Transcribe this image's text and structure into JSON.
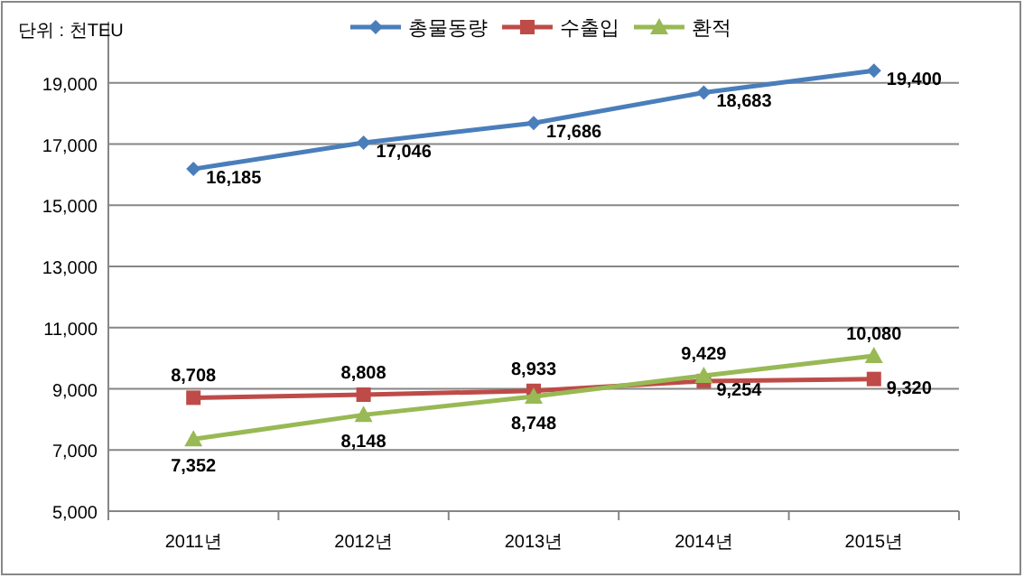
{
  "chart_data": {
    "type": "line",
    "annotations": [
      "단위 : 천TEU"
    ],
    "categories": [
      "2011년",
      "2012년",
      "2013년",
      "2014년",
      "2015년"
    ],
    "series": [
      {
        "name": "총물동량",
        "color": "#4a7ebb",
        "marker": "diamond",
        "values": [
          16185,
          17046,
          17686,
          18683,
          19400
        ],
        "value_labels": [
          "16,185",
          "17,046",
          "17,686",
          "18,683",
          "19,400"
        ]
      },
      {
        "name": "수출입",
        "color": "#be4b48",
        "marker": "square",
        "values": [
          8708,
          8808,
          8933,
          9254,
          9320
        ],
        "value_labels": [
          "8,708",
          "8,808",
          "8,933",
          "9,254",
          "9,320"
        ]
      },
      {
        "name": "환적",
        "color": "#98b954",
        "marker": "triangle",
        "values": [
          7352,
          8148,
          8748,
          9429,
          10080
        ],
        "value_labels": [
          "7,352",
          "8,148",
          "8,748",
          "9,429",
          "10,080"
        ]
      }
    ],
    "ylim": [
      5000,
      21000
    ],
    "yticks": [
      {
        "value": 5000,
        "label": "5,000"
      },
      {
        "value": 7000,
        "label": "7,000"
      },
      {
        "value": 9000,
        "label": "9,000"
      },
      {
        "value": 11000,
        "label": "11,000"
      },
      {
        "value": 13000,
        "label": "13,000"
      },
      {
        "value": 15000,
        "label": "15,000"
      },
      {
        "value": 17000,
        "label": "17,000"
      },
      {
        "value": 19000,
        "label": "19,000"
      }
    ],
    "grid": "y",
    "legend": "top",
    "line_style": "solid"
  }
}
